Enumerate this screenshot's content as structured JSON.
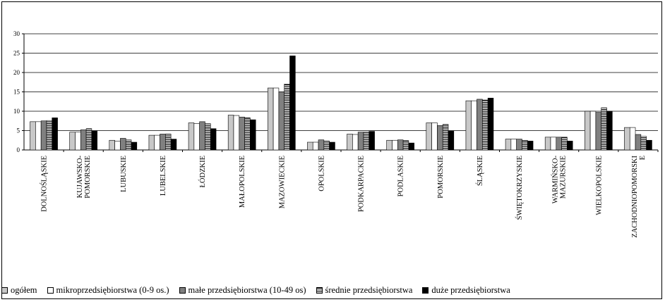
{
  "chart_data": {
    "type": "bar",
    "categories": [
      "DOLNOŚLĄSKIE",
      "KUJAWSKO-POMORSKIE",
      "LUBUSKIE",
      "LUBELSKIE",
      "ŁÓDZKIE",
      "MAŁOPOLSKIE",
      "MAZOWIECKIE",
      "OPOLSKIE",
      "PODKARPACKIE",
      "PODLASKIE",
      "POMORSKIE",
      "ŚLĄSKIE",
      "ŚWIĘTOKRZYSKIE",
      "WARMIŃSKO-MAZURSKIE",
      "WIELKOPOLSKIE",
      "ZACHODNIOPOMORSKIE"
    ],
    "category_label_lines": [
      [
        "DOLNOŚLĄSKIE"
      ],
      [
        "KUJAWSKO-",
        "POMORSKIE"
      ],
      [
        "LUBUSKIE"
      ],
      [
        "LUBELSKIE"
      ],
      [
        "ŁÓDZKIE"
      ],
      [
        "MAŁOPOLSKIE"
      ],
      [
        "MAZOWIECKIE"
      ],
      [
        "OPOLSKIE"
      ],
      [
        "PODKARPACKIE"
      ],
      [
        "PODLASKIE"
      ],
      [
        "POMORSKIE"
      ],
      [
        "ŚLĄSKIE"
      ],
      [
        "ŚWIĘTOKRZYSKIE"
      ],
      [
        "WARMIŃSKO-",
        "MAZURSKIE"
      ],
      [
        "WIELKOPOLSKIE"
      ],
      [
        "ZACHODNIOPOMORSKI",
        "E"
      ]
    ],
    "series": [
      {
        "name": "ogółem",
        "pattern": "light-gray",
        "values": [
          7.3,
          4.6,
          2.5,
          3.8,
          7.0,
          9.0,
          16.0,
          2.0,
          4.1,
          2.5,
          7.0,
          12.7,
          2.8,
          3.3,
          10.0,
          5.8
        ]
      },
      {
        "name": "mikroprzedsiębiorstwa (0-9 os.)",
        "pattern": "white",
        "values": [
          7.3,
          4.6,
          2.3,
          3.8,
          6.8,
          8.9,
          16.0,
          2.0,
          4.0,
          2.5,
          7.0,
          12.7,
          2.8,
          3.3,
          10.0,
          5.8
        ]
      },
      {
        "name": "małe przedsiębiorstwa (10-49 os)",
        "pattern": "dark-gray",
        "values": [
          7.5,
          5.2,
          3.0,
          4.1,
          7.3,
          8.5,
          15.0,
          2.6,
          4.6,
          2.6,
          6.3,
          13.1,
          2.8,
          3.3,
          9.7,
          4.0
        ]
      },
      {
        "name": "średnie przedsiębiorstwa",
        "pattern": "horizontal-stripes",
        "values": [
          7.6,
          5.5,
          2.6,
          4.1,
          6.8,
          8.3,
          17.0,
          2.3,
          4.6,
          2.4,
          6.6,
          12.9,
          2.5,
          3.3,
          10.9,
          3.5
        ]
      },
      {
        "name": "duże przedsiębiorstwa",
        "pattern": "black",
        "values": [
          8.3,
          4.9,
          2.0,
          2.8,
          5.5,
          7.8,
          24.3,
          2.0,
          4.8,
          1.8,
          4.9,
          13.4,
          2.3,
          2.3,
          10.0,
          2.5
        ]
      }
    ],
    "y_ticks": [
      "0",
      "5",
      "10",
      "15",
      "20",
      "25",
      "30"
    ],
    "ylim": [
      0,
      30
    ],
    "grid": true,
    "legend": "bottom"
  }
}
